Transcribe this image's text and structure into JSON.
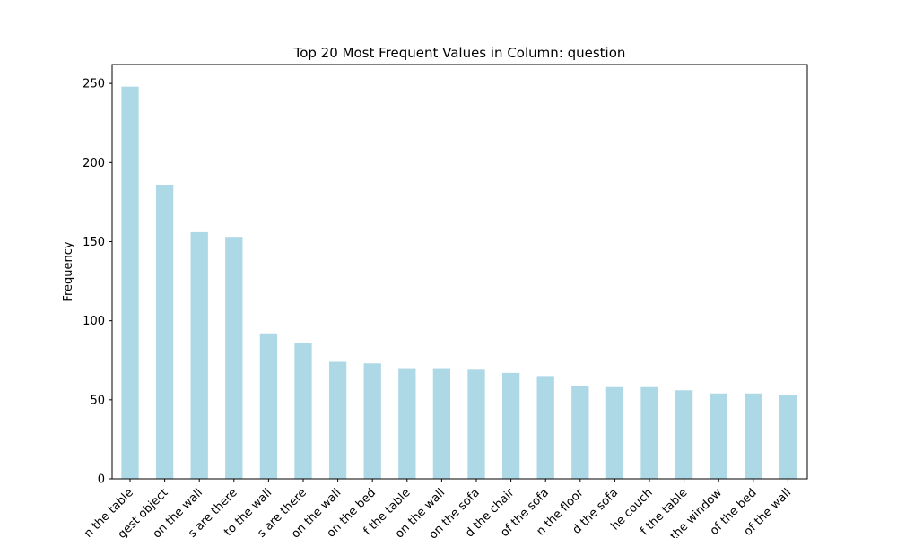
{
  "chart_data": {
    "type": "bar",
    "title": "Top 20 Most Frequent Values in Column: question",
    "xlabel": "",
    "ylabel": "Frequency",
    "ylim": [
      0,
      262
    ],
    "yticks": [
      0,
      50,
      100,
      150,
      200,
      250
    ],
    "grid": false,
    "legend": "none",
    "bar_color": "#add8e6",
    "categories": [
      "n the table",
      "gest object",
      "on the wall",
      "s are there",
      "to the wall",
      "s are there",
      "on the wall",
      "on the bed",
      "f the table",
      "on the wall",
      "on the sofa",
      "d the chair",
      "of the sofa",
      "n the floor",
      "d the sofa",
      "he couch",
      "f the table",
      "the window",
      "of the bed",
      "of the wall"
    ],
    "values": [
      248,
      186,
      156,
      153,
      92,
      86,
      74,
      73,
      70,
      70,
      69,
      67,
      65,
      59,
      58,
      58,
      56,
      54,
      54,
      53
    ]
  }
}
